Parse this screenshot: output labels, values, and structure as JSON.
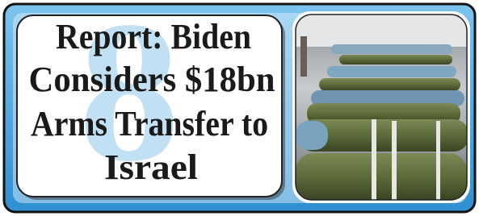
{
  "headline": {
    "watermark": "8",
    "lines": [
      "Report: Biden",
      "Considers $18bn",
      "Arms Transfer to",
      "Israel"
    ]
  }
}
